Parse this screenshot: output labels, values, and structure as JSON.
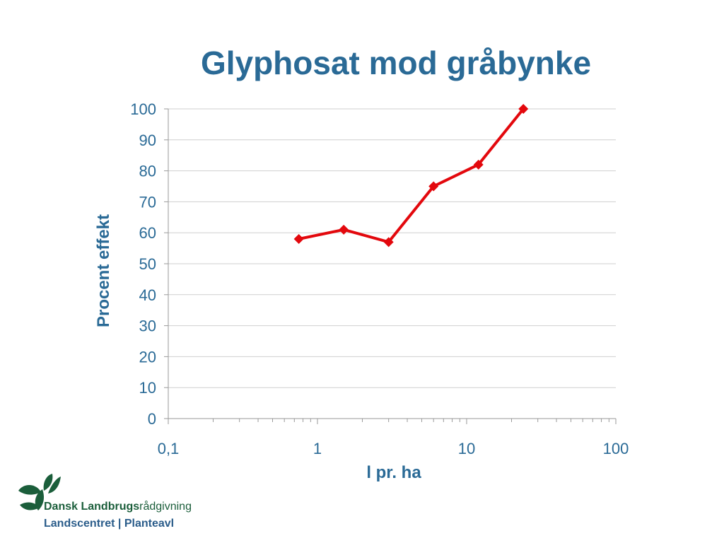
{
  "chart_data": {
    "type": "line",
    "title": "Glyphosat mod gråbynke",
    "xlabel": "l pr. ha",
    "ylabel": "Procent effekt",
    "x_scale": "log",
    "xlim": [
      0.1,
      100
    ],
    "ylim": [
      0,
      100
    ],
    "x_ticks": [
      0.1,
      1,
      10,
      100
    ],
    "x_tick_labels": [
      "0,1",
      "1",
      "10",
      "100"
    ],
    "y_ticks": [
      0,
      10,
      20,
      30,
      40,
      50,
      60,
      70,
      80,
      90,
      100
    ],
    "y_tick_labels": [
      "0",
      "10",
      "20",
      "30",
      "40",
      "50",
      "60",
      "70",
      "80",
      "90",
      "100"
    ],
    "grid": "horizontal",
    "series": [
      {
        "color": "#e3080d",
        "marker": "diamond",
        "x": [
          0.75,
          1.5,
          3.0,
          6.0,
          12.0,
          24.0
        ],
        "y": [
          58,
          61,
          57,
          75,
          82,
          100
        ]
      }
    ]
  },
  "logo": {
    "line1_bold": "Dansk Landbrugs",
    "line1_rest": "rådgivning",
    "line2": "Landscentret | Planteavl"
  }
}
